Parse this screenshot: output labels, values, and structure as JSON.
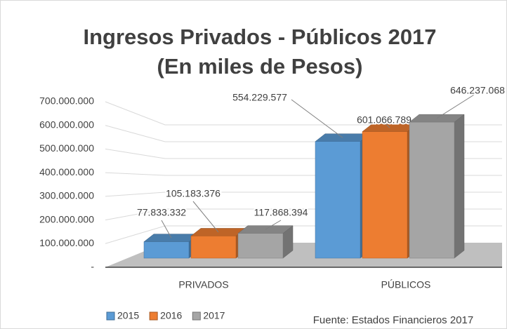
{
  "chart_data": {
    "type": "bar3d",
    "title": "Ingresos Privados - Públicos 2017",
    "subtitle": "(En miles de Pesos)",
    "categories": [
      "PRIVADOS",
      "PÚBLICOS"
    ],
    "series": [
      {
        "name": "2015",
        "color": "#5b9bd5",
        "values": [
          77833332,
          554229577
        ],
        "value_labels": [
          "77.833.332",
          "554.229.577"
        ]
      },
      {
        "name": "2016",
        "color": "#ed7d31",
        "values": [
          105183376,
          601066789
        ],
        "value_labels": [
          "105.183.376",
          "601.066.789"
        ]
      },
      {
        "name": "2017",
        "color": "#a5a5a5",
        "values": [
          117868394,
          646237068
        ],
        "value_labels": [
          "117.868.394",
          "646.237.068"
        ]
      }
    ],
    "ylim": [
      0,
      700000000
    ],
    "yticks": [
      {
        "value": 0,
        "label": "-"
      },
      {
        "value": 100000000,
        "label": "100.000.000"
      },
      {
        "value": 200000000,
        "label": "200.000.000"
      },
      {
        "value": 300000000,
        "label": "300.000.000"
      },
      {
        "value": 400000000,
        "label": "400.000.000"
      },
      {
        "value": 500000000,
        "label": "500.000.000"
      },
      {
        "value": 600000000,
        "label": "600.000.000"
      },
      {
        "value": 700000000,
        "label": "700.000.000"
      }
    ],
    "grid": true,
    "legend": "bottom-left",
    "annotation": "Fuente: Estados Financieros 2017"
  }
}
